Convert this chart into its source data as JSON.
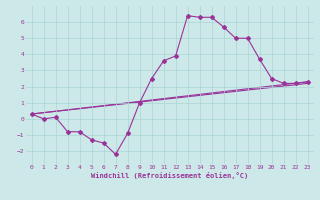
{
  "xlabel": "Windchill (Refroidissement éolien,°C)",
  "bg_color": "#cce8e8",
  "line_color": "#993399",
  "grid_color": "#aad4d4",
  "xlim": [
    -0.5,
    23.5
  ],
  "ylim": [
    -2.8,
    7.0
  ],
  "xticks": [
    0,
    1,
    2,
    3,
    4,
    5,
    6,
    7,
    8,
    9,
    10,
    11,
    12,
    13,
    14,
    15,
    16,
    17,
    18,
    19,
    20,
    21,
    22,
    23
  ],
  "yticks": [
    -2,
    -1,
    0,
    1,
    2,
    3,
    4,
    5,
    6
  ],
  "series1_x": [
    0,
    1,
    2,
    3,
    4,
    5,
    6,
    7,
    8,
    9,
    10,
    11,
    12,
    13,
    14,
    15,
    16,
    17,
    18,
    19,
    20,
    21,
    22,
    23
  ],
  "series1_y": [
    0.3,
    0.0,
    0.1,
    -0.8,
    -0.8,
    -1.3,
    -1.5,
    -2.2,
    -0.9,
    1.0,
    2.5,
    3.6,
    3.9,
    6.4,
    6.3,
    6.3,
    5.7,
    5.0,
    5.0,
    3.7,
    2.5,
    2.2,
    2.2,
    2.3
  ],
  "line1_x": [
    0,
    23
  ],
  "line1_y": [
    0.3,
    2.3
  ],
  "line2_x": [
    0,
    23
  ],
  "line2_y": [
    0.3,
    2.2
  ]
}
